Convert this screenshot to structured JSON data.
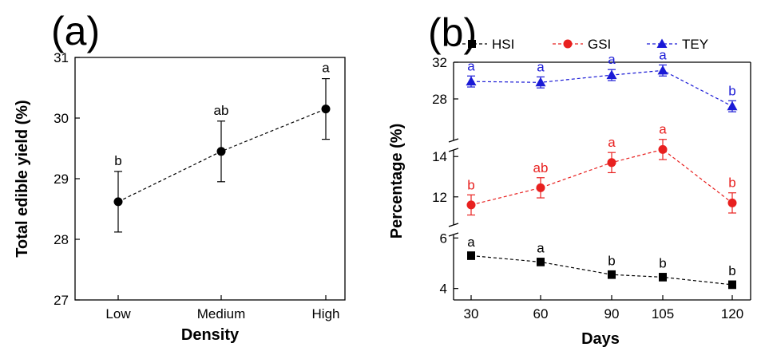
{
  "chart_data": [
    {
      "panel": "(a)",
      "type": "line",
      "xlabel": "Density",
      "ylabel": "Total edible yield (%)",
      "categories": [
        "Low",
        "Medium",
        "High"
      ],
      "ylim": [
        27,
        31
      ],
      "yticks": [
        "27",
        "28",
        "29",
        "30",
        "31"
      ],
      "series": [
        {
          "values": [
            28.62,
            29.45,
            30.15
          ],
          "error": [
            0.5,
            0.5,
            0.5
          ],
          "labels": [
            "b",
            "ab",
            "a"
          ],
          "color": "#000000",
          "marker": "circle"
        }
      ]
    },
    {
      "panel": "(b)",
      "type": "line",
      "xlabel": "Days",
      "ylabel": "Percentage (%)",
      "categories": [
        "30",
        "60",
        "90",
        "105",
        "120"
      ],
      "broken_y_axis": true,
      "segments": [
        {
          "range": [
            3.8,
            6.2
          ],
          "ticks": [
            "4",
            "6"
          ]
        },
        {
          "range": [
            11.2,
            14.8
          ],
          "ticks": [
            "12",
            "14"
          ]
        },
        {
          "range": [
            26.0,
            32.0
          ],
          "ticks": [
            "28",
            "32"
          ]
        }
      ],
      "series": [
        {
          "name": "HSI",
          "values": [
            5.3,
            5.05,
            4.55,
            4.45,
            4.15
          ],
          "error": [
            0.15,
            0.15,
            0.15,
            0.15,
            0.15
          ],
          "labels": [
            "a",
            "a",
            "b",
            "b",
            "b"
          ],
          "color": "#000000",
          "marker": "square",
          "segment": 0
        },
        {
          "name": "GSI",
          "values": [
            11.6,
            12.45,
            13.7,
            14.35,
            11.7
          ],
          "error": [
            0.5,
            0.5,
            0.5,
            0.5,
            0.5
          ],
          "labels": [
            "b",
            "ab",
            "a",
            "a",
            "b"
          ],
          "color": "#e8201f",
          "marker": "circle",
          "segment": 1
        },
        {
          "name": "TEY",
          "values": [
            29.9,
            29.8,
            30.6,
            31.1,
            27.2
          ],
          "error": [
            0.6,
            0.6,
            0.6,
            0.6,
            0.6
          ],
          "labels": [
            "a",
            "a",
            "a",
            "a",
            "b"
          ],
          "color": "#1a1ad6",
          "marker": "triangle",
          "segment": 2
        }
      ]
    }
  ]
}
